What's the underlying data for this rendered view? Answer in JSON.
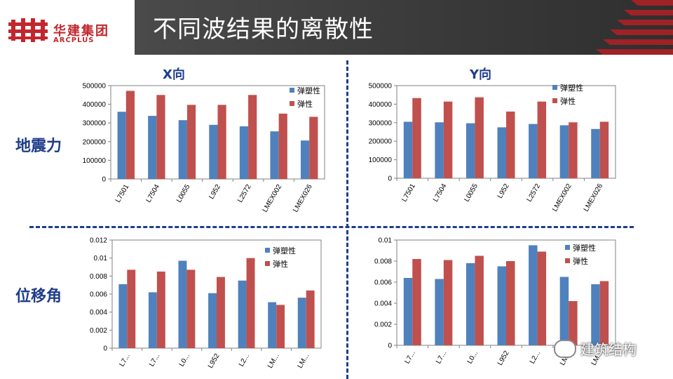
{
  "header": {
    "logo_cn": "华建集团",
    "logo_en": "ARCPLUS",
    "title": "不同波结果的离散性"
  },
  "labels": {
    "x_direction": "X向",
    "y_direction": "Y向",
    "seismic_force": "地震力",
    "displacement_angle": "位移角"
  },
  "watermark": "建筑结构",
  "colors": {
    "elastoplastic": "#4f81bd",
    "elastic": "#c0504d",
    "brand": "#c1272d",
    "divider": "#1f3d8a"
  },
  "chart_data": [
    {
      "type": "bar",
      "categories": [
        "L7501",
        "L7504",
        "L0055",
        "L952",
        "L2572",
        "LMEX002",
        "LMEX026"
      ],
      "series": [
        {
          "name": "弹塑性",
          "values": [
            360000,
            338000,
            315000,
            290000,
            282000,
            255000,
            206000
          ]
        },
        {
          "name": "弹性",
          "values": [
            472000,
            450000,
            397000,
            397000,
            450000,
            350000,
            333000
          ]
        }
      ],
      "ylim": [
        0,
        500000
      ],
      "yticks": [
        "0",
        "100000",
        "200000",
        "300000",
        "400000",
        "500000"
      ],
      "legend": "top-right"
    },
    {
      "type": "bar",
      "categories": [
        "L7501",
        "L7504",
        "L0055",
        "L952",
        "L2572",
        "LMEX002",
        "LMEX026"
      ],
      "series": [
        {
          "name": "弹塑性",
          "values": [
            305000,
            302000,
            297000,
            275000,
            293000,
            286000,
            266000
          ]
        },
        {
          "name": "弹性",
          "values": [
            433000,
            414000,
            437000,
            360000,
            414000,
            302000,
            305000
          ]
        }
      ],
      "ylim": [
        0,
        500000
      ],
      "yticks": [
        "0",
        "100000",
        "200000",
        "300000",
        "400000",
        "500000"
      ],
      "legend": "top-right"
    },
    {
      "type": "bar",
      "categories": [
        "L7...",
        "L7...",
        "L0...",
        "L952",
        "L2...",
        "LM...",
        "LM..."
      ],
      "series": [
        {
          "name": "弹塑性",
          "values": [
            0.0071,
            0.0062,
            0.0097,
            0.0061,
            0.0075,
            0.0051,
            0.0056
          ]
        },
        {
          "name": "弹性",
          "values": [
            0.0087,
            0.0085,
            0.0087,
            0.0079,
            0.01,
            0.0048,
            0.0064
          ]
        }
      ],
      "ylim": [
        0,
        0.012
      ],
      "yticks": [
        "0",
        "0.002",
        "0.004",
        "0.006",
        "0.008",
        "0.01",
        "0.012"
      ],
      "legend": "top-right"
    },
    {
      "type": "bar",
      "categories": [
        "L7...",
        "L7...",
        "L0...",
        "L952",
        "L2...",
        "LM...",
        "LM..."
      ],
      "series": [
        {
          "name": "弹塑性",
          "values": [
            0.0064,
            0.0063,
            0.0078,
            0.0075,
            0.0095,
            0.0065,
            0.0058
          ]
        },
        {
          "name": "弹性",
          "values": [
            0.0082,
            0.0081,
            0.0085,
            0.008,
            0.0089,
            0.0042,
            0.0061
          ]
        }
      ],
      "ylim": [
        0,
        0.01
      ],
      "yticks": [
        "0",
        "0.002",
        "0.004",
        "0.006",
        "0.008",
        "0.01"
      ],
      "legend": "top-right"
    }
  ]
}
